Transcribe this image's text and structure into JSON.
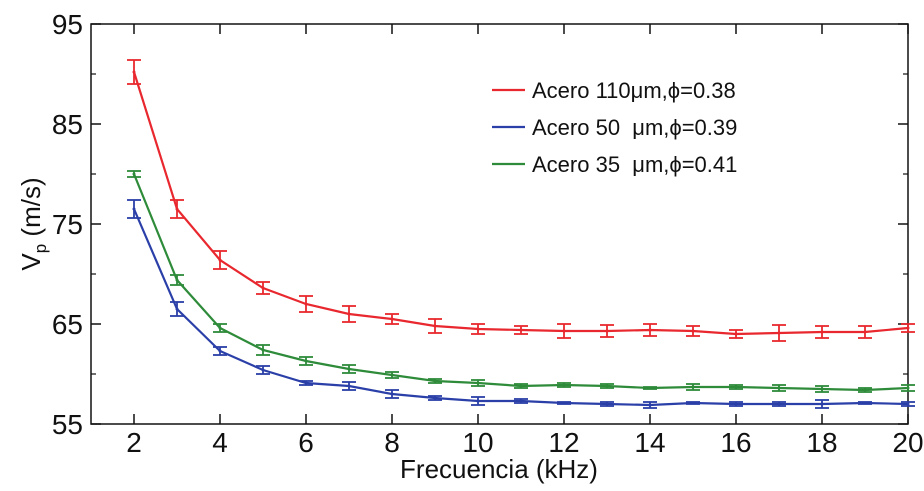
{
  "chart_data": {
    "type": "line",
    "title": "",
    "xlabel": "Frecuencia (kHz)",
    "ylabel_main": "V",
    "ylabel_sub": "p",
    "ylabel_unit": "(m/s)",
    "xlim": [
      1,
      20
    ],
    "ylim": [
      55,
      95
    ],
    "xticks": [
      2,
      4,
      6,
      8,
      10,
      12,
      14,
      16,
      18,
      20
    ],
    "yticks": [
      55,
      65,
      75,
      85,
      95
    ],
    "grid": false,
    "legend_position": "top-right",
    "x": [
      2,
      3,
      4,
      5,
      6,
      7,
      8,
      9,
      10,
      11,
      12,
      13,
      14,
      15,
      16,
      17,
      18,
      19,
      20
    ],
    "series": [
      {
        "name": "Acero 110μm,ϕ=0.38",
        "color": "#e8282e",
        "values": [
          90.2,
          76.5,
          71.4,
          68.6,
          67.0,
          66.0,
          65.5,
          64.8,
          64.5,
          64.4,
          64.3,
          64.3,
          64.4,
          64.3,
          64.0,
          64.1,
          64.2,
          64.2,
          64.6
        ],
        "errors": [
          1.2,
          0.9,
          0.9,
          0.6,
          0.8,
          0.8,
          0.5,
          0.7,
          0.5,
          0.4,
          0.7,
          0.6,
          0.6,
          0.5,
          0.4,
          0.8,
          0.6,
          0.6,
          0.4
        ]
      },
      {
        "name": "Acero 50  μm,ϕ=0.39",
        "color": "#2b3fa8",
        "values": [
          76.5,
          66.5,
          62.3,
          60.4,
          59.1,
          58.8,
          58.0,
          57.6,
          57.3,
          57.3,
          57.1,
          57.0,
          56.9,
          57.1,
          57.0,
          57.0,
          57.0,
          57.1,
          57.0
        ],
        "errors": [
          0.9,
          0.7,
          0.4,
          0.4,
          0.2,
          0.4,
          0.4,
          0.2,
          0.4,
          0.2,
          0.1,
          0.2,
          0.3,
          0.1,
          0.2,
          0.2,
          0.4,
          0.1,
          0.2
        ]
      },
      {
        "name": "Acero 35  μm,ϕ=0.41",
        "color": "#2e8b3a",
        "values": [
          80.0,
          69.4,
          64.6,
          62.4,
          61.3,
          60.5,
          59.9,
          59.3,
          59.1,
          58.8,
          58.9,
          58.8,
          58.6,
          58.7,
          58.7,
          58.6,
          58.5,
          58.4,
          58.6
        ],
        "errors": [
          0.3,
          0.5,
          0.4,
          0.5,
          0.4,
          0.4,
          0.3,
          0.2,
          0.3,
          0.2,
          0.2,
          0.2,
          0.1,
          0.3,
          0.2,
          0.3,
          0.3,
          0.2,
          0.3
        ]
      }
    ]
  }
}
